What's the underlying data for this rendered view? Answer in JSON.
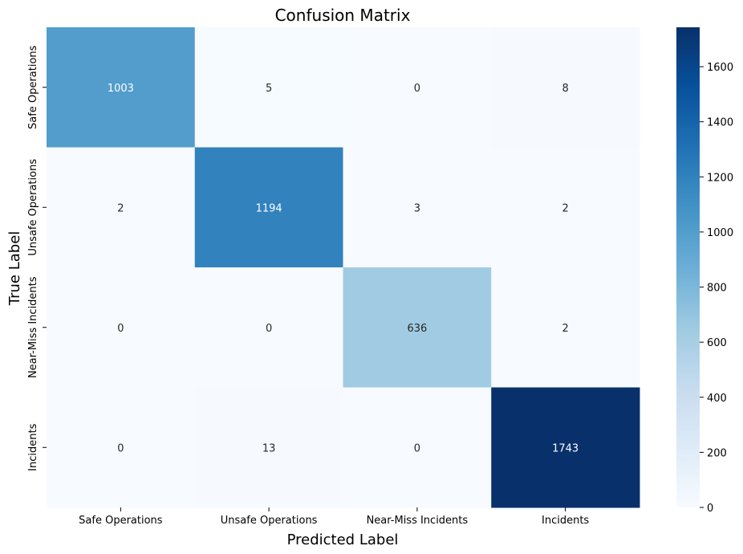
{
  "chart_data": {
    "type": "heatmap",
    "title": "Confusion Matrix",
    "xlabel": "Predicted Label",
    "ylabel": "True Label",
    "x_categories": [
      "Safe Operations",
      "Unsafe Operations",
      "Near-Miss Incidents",
      "Incidents"
    ],
    "y_categories": [
      "Safe Operations",
      "Unsafe Operations",
      "Near-Miss Incidents",
      "Incidents"
    ],
    "values": [
      [
        1003,
        5,
        0,
        8
      ],
      [
        2,
        1194,
        3,
        2
      ],
      [
        0,
        0,
        636,
        2
      ],
      [
        0,
        13,
        0,
        1743
      ]
    ],
    "colormap": "Blues",
    "color_range": [
      0,
      1743
    ],
    "colorbar_ticks": [
      0,
      200,
      400,
      600,
      800,
      1000,
      1200,
      1400,
      1600
    ]
  }
}
